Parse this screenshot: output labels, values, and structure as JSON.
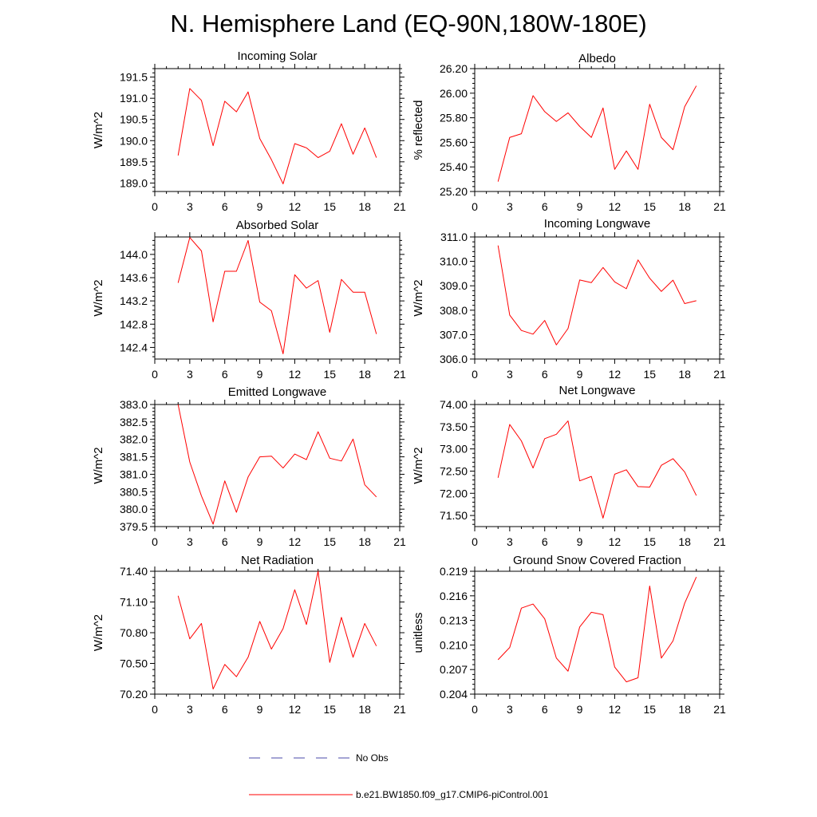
{
  "figure_title": "N. Hemisphere Land (EQ-90N,180W-180E)",
  "colors": {
    "model": "#ff0000",
    "obs": "#4a4aa8",
    "axis": "#000000"
  },
  "legend": [
    {
      "label": "No Obs",
      "style": "dashed",
      "color": "#4a4aa8"
    },
    {
      "label": "b.e21.BW1850.f09_g17.CMIP6-piControl.001",
      "style": "solid",
      "color": "#ff0000"
    }
  ],
  "chart_data": [
    {
      "type": "line",
      "title": "Incoming Solar",
      "ylabel": "W/m^2",
      "xlim": [
        0,
        21
      ],
      "xticks": [
        0,
        3,
        6,
        9,
        12,
        15,
        18,
        21
      ],
      "ylim": [
        188.8,
        191.7
      ],
      "yticks": [
        189.0,
        189.5,
        190.0,
        190.5,
        191.0,
        191.5
      ],
      "ytick_labels": [
        "189.0",
        "189.5",
        "190.0",
        "190.5",
        "191.0",
        "191.5"
      ],
      "x": [
        2,
        3,
        4,
        5,
        6,
        7,
        8,
        9,
        10,
        11,
        12,
        13,
        14,
        15,
        16,
        17,
        18,
        19
      ],
      "series": [
        {
          "name": "b.e21.BW1850.f09_g17.CMIP6-piControl.001",
          "values": [
            189.65,
            191.23,
            190.95,
            189.88,
            190.93,
            190.68,
            191.15,
            190.05,
            189.55,
            188.98,
            189.93,
            189.83,
            189.6,
            189.75,
            190.4,
            189.68,
            190.3,
            189.6
          ]
        }
      ]
    },
    {
      "type": "line",
      "title": "Albedo",
      "ylabel": "% reflected",
      "xlim": [
        0,
        21
      ],
      "xticks": [
        0,
        3,
        6,
        9,
        12,
        15,
        18,
        21
      ],
      "ylim": [
        25.2,
        26.2
      ],
      "yticks": [
        25.2,
        25.4,
        25.6,
        25.8,
        26.0,
        26.2
      ],
      "ytick_labels": [
        "25.20",
        "25.40",
        "25.60",
        "25.80",
        "26.00",
        "26.20"
      ],
      "x": [
        2,
        3,
        4,
        5,
        6,
        7,
        8,
        9,
        10,
        11,
        12,
        13,
        14,
        15,
        16,
        17,
        18,
        19
      ],
      "series": [
        {
          "name": "b.e21.BW1850.f09_g17.CMIP6-piControl.001",
          "values": [
            25.28,
            25.64,
            25.67,
            25.98,
            25.85,
            25.77,
            25.84,
            25.73,
            25.64,
            25.88,
            25.38,
            25.53,
            25.38,
            25.91,
            25.64,
            25.54,
            25.89,
            26.06
          ]
        }
      ]
    },
    {
      "type": "line",
      "title": "Absorbed Solar",
      "ylabel": "W/m^2",
      "xlim": [
        0,
        21
      ],
      "xticks": [
        0,
        3,
        6,
        9,
        12,
        15,
        18,
        21
      ],
      "ylim": [
        142.2,
        144.3
      ],
      "yticks": [
        142.4,
        142.8,
        143.2,
        143.6,
        144.0
      ],
      "ytick_labels": [
        "142.4",
        "142.8",
        "143.2",
        "143.6",
        "144.0"
      ],
      "x": [
        2,
        3,
        4,
        5,
        6,
        7,
        8,
        9,
        10,
        11,
        12,
        13,
        14,
        15,
        16,
        17,
        18,
        19
      ],
      "series": [
        {
          "name": "b.e21.BW1850.f09_g17.CMIP6-piControl.001",
          "values": [
            143.51,
            144.29,
            144.06,
            142.84,
            143.71,
            143.71,
            144.24,
            143.18,
            143.03,
            142.29,
            143.65,
            143.42,
            143.55,
            142.66,
            143.57,
            143.35,
            143.35,
            142.63
          ]
        }
      ]
    },
    {
      "type": "line",
      "title": "Incoming Longwave",
      "ylabel": "W/m^2",
      "xlim": [
        0,
        21
      ],
      "xticks": [
        0,
        3,
        6,
        9,
        12,
        15,
        18,
        21
      ],
      "ylim": [
        306.0,
        311.0
      ],
      "yticks": [
        306.0,
        307.0,
        308.0,
        309.0,
        310.0,
        311.0
      ],
      "ytick_labels": [
        "306.0",
        "307.0",
        "308.0",
        "309.0",
        "310.0",
        "311.0"
      ],
      "x": [
        2,
        3,
        4,
        5,
        6,
        7,
        8,
        9,
        10,
        11,
        12,
        13,
        14,
        15,
        16,
        17,
        18,
        19
      ],
      "series": [
        {
          "name": "b.e21.BW1850.f09_g17.CMIP6-piControl.001",
          "values": [
            310.65,
            307.8,
            307.17,
            307.02,
            307.58,
            306.58,
            307.25,
            309.24,
            309.13,
            309.75,
            309.16,
            308.88,
            310.06,
            309.31,
            308.77,
            309.23,
            308.27,
            308.39
          ]
        }
      ]
    },
    {
      "type": "line",
      "title": "Emitted Longwave",
      "ylabel": "W/m^2",
      "xlim": [
        0,
        21
      ],
      "xticks": [
        0,
        3,
        6,
        9,
        12,
        15,
        18,
        21
      ],
      "ylim": [
        379.5,
        383.0
      ],
      "yticks": [
        379.5,
        380.0,
        380.5,
        381.0,
        381.5,
        382.0,
        382.5,
        383.0
      ],
      "ytick_labels": [
        "379.5",
        "380.0",
        "380.5",
        "381.0",
        "381.5",
        "382.0",
        "382.5",
        "383.0"
      ],
      "x": [
        2,
        3,
        4,
        5,
        6,
        7,
        8,
        9,
        10,
        11,
        12,
        13,
        14,
        15,
        16,
        17,
        18,
        19
      ],
      "series": [
        {
          "name": "b.e21.BW1850.f09_g17.CMIP6-piControl.001",
          "values": [
            383.0,
            381.35,
            380.38,
            379.57,
            380.81,
            379.91,
            380.92,
            381.5,
            381.52,
            381.18,
            381.58,
            381.42,
            382.22,
            381.46,
            381.38,
            382.01,
            380.7,
            380.35
          ]
        }
      ]
    },
    {
      "type": "line",
      "title": "Net Longwave",
      "ylabel": "W/m^2",
      "xlim": [
        0,
        21
      ],
      "xticks": [
        0,
        3,
        6,
        9,
        12,
        15,
        18,
        21
      ],
      "ylim": [
        71.25,
        74.0
      ],
      "yticks": [
        71.5,
        72.0,
        72.5,
        73.0,
        73.5,
        74.0
      ],
      "ytick_labels": [
        "71.50",
        "72.00",
        "72.50",
        "73.00",
        "73.50",
        "74.00"
      ],
      "x": [
        2,
        3,
        4,
        5,
        6,
        7,
        8,
        9,
        10,
        11,
        12,
        13,
        14,
        15,
        16,
        17,
        18,
        19
      ],
      "series": [
        {
          "name": "b.e21.BW1850.f09_g17.CMIP6-piControl.001",
          "values": [
            72.35,
            73.55,
            73.18,
            72.57,
            73.23,
            73.33,
            73.63,
            72.28,
            72.38,
            71.44,
            72.43,
            72.53,
            72.15,
            72.14,
            72.63,
            72.78,
            72.48,
            71.95
          ]
        }
      ]
    },
    {
      "type": "line",
      "title": "Net Radiation",
      "ylabel": "W/m^2",
      "xlim": [
        0,
        21
      ],
      "xticks": [
        0,
        3,
        6,
        9,
        12,
        15,
        18,
        21
      ],
      "ylim": [
        70.2,
        71.4
      ],
      "yticks": [
        70.2,
        70.5,
        70.8,
        71.1,
        71.4
      ],
      "ytick_labels": [
        "70.20",
        "70.50",
        "70.80",
        "71.10",
        "71.40"
      ],
      "x": [
        2,
        3,
        4,
        5,
        6,
        7,
        8,
        9,
        10,
        11,
        12,
        13,
        14,
        15,
        16,
        17,
        18,
        19
      ],
      "series": [
        {
          "name": "b.e21.BW1850.f09_g17.CMIP6-piControl.001",
          "values": [
            71.16,
            70.74,
            70.89,
            70.25,
            70.49,
            70.37,
            70.56,
            70.91,
            70.64,
            70.84,
            71.22,
            70.88,
            71.4,
            70.51,
            70.95,
            70.56,
            70.89,
            70.67
          ]
        }
      ]
    },
    {
      "type": "line",
      "title": "Ground Snow Covered Fraction",
      "ylabel": "unitless",
      "xlim": [
        0,
        21
      ],
      "xticks": [
        0,
        3,
        6,
        9,
        12,
        15,
        18,
        21
      ],
      "ylim": [
        0.204,
        0.219
      ],
      "yticks": [
        0.204,
        0.207,
        0.21,
        0.213,
        0.216,
        0.219
      ],
      "ytick_labels": [
        "0.204",
        "0.207",
        "0.210",
        "0.213",
        "0.216",
        "0.219"
      ],
      "x": [
        2,
        3,
        4,
        5,
        6,
        7,
        8,
        9,
        10,
        11,
        12,
        13,
        14,
        15,
        16,
        17,
        18,
        19
      ],
      "series": [
        {
          "name": "b.e21.BW1850.f09_g17.CMIP6-piControl.001",
          "values": [
            0.2082,
            0.2097,
            0.2145,
            0.215,
            0.2132,
            0.2084,
            0.2068,
            0.2122,
            0.214,
            0.2137,
            0.2073,
            0.2055,
            0.206,
            0.2172,
            0.2084,
            0.2105,
            0.2151,
            0.2183
          ]
        }
      ]
    }
  ]
}
